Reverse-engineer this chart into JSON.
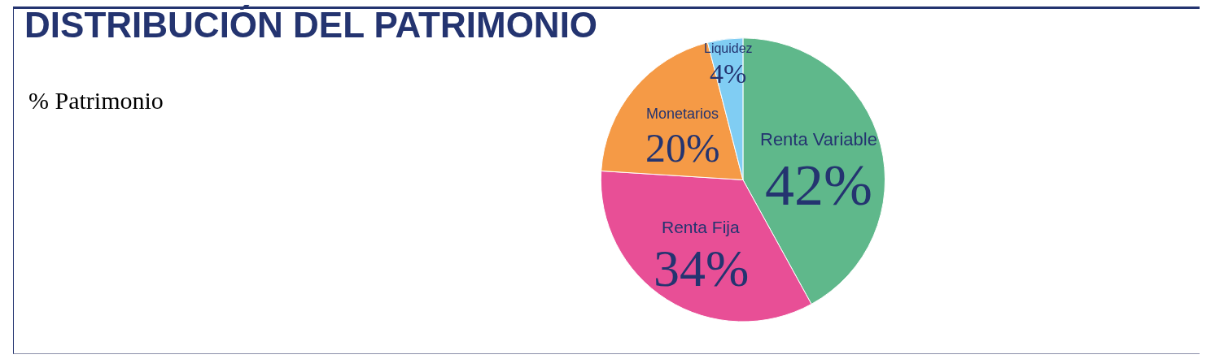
{
  "chart_data": {
    "type": "pie",
    "title": "DISTRIBUCIÓN DEL PATRIMONIO",
    "subtitle": "% Patrimonio",
    "categories": [
      "Renta Variable",
      "Renta Fija",
      "Monetarios",
      "Liquidez"
    ],
    "values": [
      42,
      34,
      20,
      4
    ],
    "value_labels": [
      "42%",
      "34%",
      "20%",
      "4%"
    ],
    "colors": [
      "#5fb88b",
      "#e84f96",
      "#f59a46",
      "#80cdf3"
    ],
    "legend": false
  }
}
